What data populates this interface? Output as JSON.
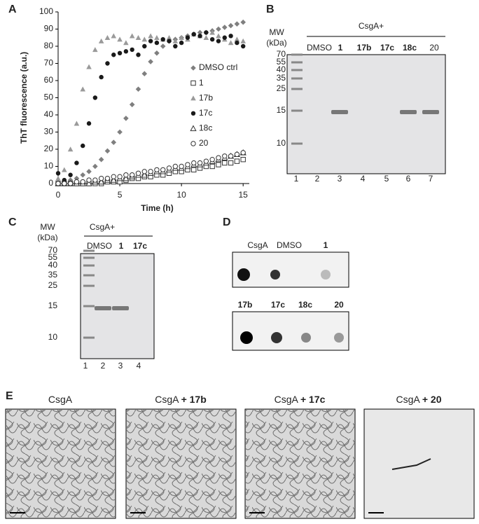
{
  "chart_data": {
    "type": "scatter",
    "panel_label": "A",
    "x_label": "Time (h)",
    "y_label": "ThT fluorescence (a.u.)",
    "x": [
      0,
      0.5,
      1,
      1.5,
      2,
      2.5,
      3,
      3.5,
      4,
      4.5,
      5,
      5.5,
      6,
      6.5,
      7,
      7.5,
      8,
      8.5,
      9,
      9.5,
      10,
      10.5,
      11,
      11.5,
      12,
      12.5,
      13,
      13.5,
      14,
      14.5,
      15
    ],
    "series": [
      {
        "name": "DMSO ctrl",
        "color": "#7f7f7f",
        "marker": "diamond",
        "values": [
          0,
          1,
          2,
          3,
          5,
          7,
          10,
          14,
          19,
          24,
          30,
          38,
          46,
          55,
          64,
          71,
          76,
          80,
          83,
          84,
          85,
          86,
          87,
          88,
          88,
          89,
          90,
          91,
          92,
          93,
          94
        ]
      },
      {
        "name": "1",
        "color": "#333333",
        "marker": "square-open",
        "values": [
          0,
          0,
          0,
          0,
          0,
          0,
          0,
          0,
          1,
          1,
          1,
          2,
          3,
          3,
          4,
          4,
          5,
          5,
          6,
          7,
          7,
          8,
          8,
          9,
          10,
          10,
          11,
          12,
          12,
          13,
          14
        ]
      },
      {
        "name": "17b",
        "color": "#9a9a9a",
        "marker": "triangle",
        "values": [
          3,
          8,
          20,
          35,
          55,
          68,
          78,
          83,
          85,
          86,
          84,
          82,
          86,
          85,
          84,
          86,
          85,
          84,
          85,
          83,
          85,
          84,
          87,
          86,
          85,
          88,
          86,
          84,
          82,
          84,
          83
        ]
      },
      {
        "name": "17c",
        "color": "#1a1a1a",
        "marker": "circle",
        "values": [
          6,
          2,
          5,
          12,
          22,
          35,
          50,
          62,
          70,
          75,
          76,
          77,
          78,
          75,
          80,
          83,
          82,
          84,
          83,
          80,
          82,
          85,
          87,
          86,
          88,
          84,
          83,
          85,
          86,
          82,
          80
        ]
      },
      {
        "name": "18c",
        "color": "#333333",
        "marker": "triangle-open",
        "values": [
          0,
          0,
          0,
          0,
          0,
          0,
          1,
          1,
          2,
          2,
          3,
          3,
          4,
          5,
          5,
          6,
          7,
          7,
          8,
          9,
          9,
          10,
          11,
          11,
          12,
          13,
          14,
          15,
          16,
          17,
          18
        ]
      },
      {
        "name": "20",
        "color": "#333333",
        "marker": "circle-open",
        "values": [
          0,
          0,
          0,
          1,
          1,
          2,
          2,
          3,
          3,
          4,
          4,
          5,
          5,
          6,
          7,
          7,
          8,
          8,
          9,
          10,
          10,
          11,
          12,
          12,
          13,
          14,
          15,
          16,
          16,
          17,
          18
        ]
      }
    ],
    "xlim": [
      0,
      15.5
    ],
    "xticks": [
      0,
      5,
      10,
      15
    ],
    "ylim": [
      0,
      100
    ],
    "yticks": [
      0,
      10,
      20,
      30,
      40,
      50,
      60,
      70,
      80,
      90,
      100
    ]
  },
  "panel_b": {
    "label": "B",
    "mw_title": "MW",
    "mw_unit": "(kDa)",
    "group": "CsgA+",
    "lane_headers": [
      "DMSO",
      "1",
      "17b",
      "17c",
      "18c",
      "20"
    ],
    "mw_markers": [
      70,
      55,
      40,
      35,
      25,
      15,
      10
    ],
    "lane_numbers": [
      1,
      2,
      3,
      4,
      5,
      6,
      7
    ]
  },
  "panel_c": {
    "label": "C",
    "mw_title": "MW",
    "mw_unit": "(kDa)",
    "group": "CsgA+",
    "lane_headers": [
      "DMSO",
      "1",
      "17c"
    ],
    "mw_markers": [
      70,
      55,
      40,
      35,
      25,
      15,
      10
    ],
    "lane_numbers": [
      1,
      2,
      3,
      4
    ]
  },
  "panel_d": {
    "label": "D",
    "top_labels": [
      "CsgA",
      "DMSO",
      "1"
    ],
    "bottom_labels": [
      "17b",
      "17c",
      "18c",
      "20"
    ]
  },
  "panel_e": {
    "label": "E",
    "images": [
      {
        "base": "CsgA"
      },
      {
        "base": "CsgA",
        "added": "+ 17b"
      },
      {
        "base": "CsgA",
        "added": "+ 17c"
      },
      {
        "base": "CsgA",
        "added": "+ 20"
      }
    ]
  }
}
